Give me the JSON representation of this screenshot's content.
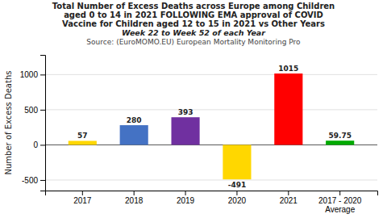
{
  "chart_data": {
    "type": "bar",
    "title": "Total Number of Excess Deaths across Europe among Children\naged 0 to 14 in 2021 FOLLOWING EMA approval of COVID\nVaccine for Children aged 12 to 15 in 2021 vs Other Years",
    "subtitle": "Week 22 to Week 52 of each Year",
    "annotations": [
      "Source: (EuroMOMO.EU) European Mortality Monitoring Pro"
    ],
    "ylabel": "Number of Excess Deaths",
    "categories": [
      "2017",
      "2018",
      "2019",
      "2020",
      "2021",
      "2017 - 2020\nAverage"
    ],
    "values": [
      57,
      280,
      393,
      -491,
      1015,
      59.75
    ],
    "colors": [
      "#FFD700",
      "#4472C4",
      "#7030A0",
      "#FFD700",
      "#FF0000",
      "#00AA00"
    ],
    "ylim": [
      -650,
      1280
    ],
    "yticks": [
      -500,
      0,
      500,
      1000
    ],
    "grid": true,
    "data_labels": true
  }
}
